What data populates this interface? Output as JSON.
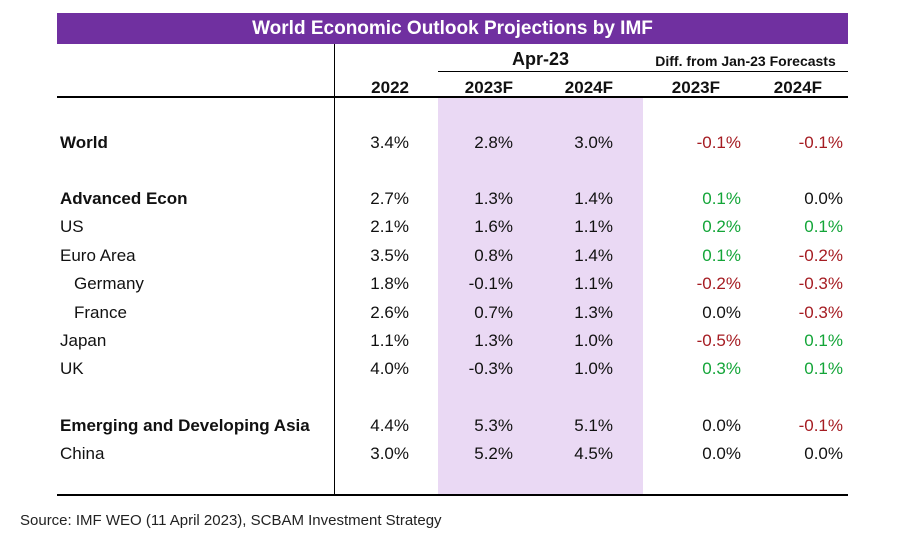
{
  "title": "World Economic Outlook Projections by IMF",
  "header": {
    "group_apr": "Apr-23",
    "group_diff": "Diff. from Jan-23 Forecasts",
    "columns": [
      "2022",
      "2023F",
      "2024F",
      "2023F",
      "2024F"
    ]
  },
  "colors": {
    "title_bg": "#7030a0",
    "highlight": "#ead9f4",
    "positive": "#13a538",
    "negative": "#a51c22"
  },
  "rows": [
    {
      "label": "World",
      "bold": true,
      "indent": false,
      "values": [
        "3.4%",
        "2.8%",
        "3.0%"
      ],
      "diff": [
        "-0.1%",
        "-0.1%"
      ]
    },
    {
      "label": "Advanced Econ",
      "bold": true,
      "indent": false,
      "values": [
        "2.7%",
        "1.3%",
        "1.4%"
      ],
      "diff": [
        "0.1%",
        "0.0%"
      ]
    },
    {
      "label": "US",
      "bold": false,
      "indent": false,
      "values": [
        "2.1%",
        "1.6%",
        "1.1%"
      ],
      "diff": [
        "0.2%",
        "0.1%"
      ]
    },
    {
      "label": "Euro Area",
      "bold": false,
      "indent": false,
      "values": [
        "3.5%",
        "0.8%",
        "1.4%"
      ],
      "diff": [
        "0.1%",
        "-0.2%"
      ]
    },
    {
      "label": "Germany",
      "bold": false,
      "indent": true,
      "values": [
        "1.8%",
        "-0.1%",
        "1.1%"
      ],
      "diff": [
        "-0.2%",
        "-0.3%"
      ]
    },
    {
      "label": "France",
      "bold": false,
      "indent": true,
      "values": [
        "2.6%",
        "0.7%",
        "1.3%"
      ],
      "diff": [
        "0.0%",
        "-0.3%"
      ]
    },
    {
      "label": "Japan",
      "bold": false,
      "indent": false,
      "values": [
        "1.1%",
        "1.3%",
        "1.0%"
      ],
      "diff": [
        "-0.5%",
        "0.1%"
      ]
    },
    {
      "label": "UK",
      "bold": false,
      "indent": false,
      "values": [
        "4.0%",
        "-0.3%",
        "1.0%"
      ],
      "diff": [
        "0.3%",
        "0.1%"
      ]
    },
    {
      "label": "Emerging and Developing Asia",
      "bold": true,
      "indent": false,
      "values": [
        "4.4%",
        "5.3%",
        "5.1%"
      ],
      "diff": [
        "0.0%",
        "-0.1%"
      ]
    },
    {
      "label": "China",
      "bold": false,
      "indent": false,
      "values": [
        "3.0%",
        "5.2%",
        "4.5%"
      ],
      "diff": [
        "0.0%",
        "0.0%"
      ]
    }
  ],
  "source": "Source: IMF WEO (11 April 2023), SCBAM Investment Strategy"
}
